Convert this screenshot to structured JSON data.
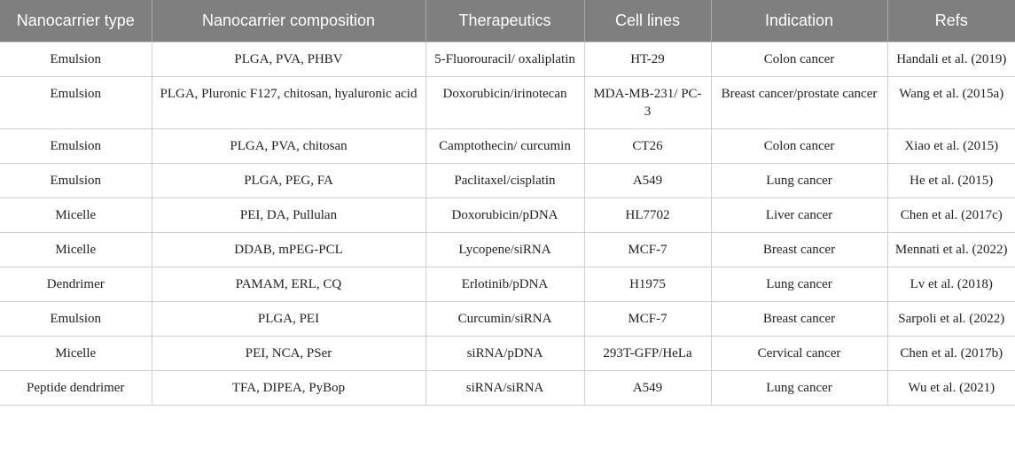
{
  "table": {
    "header": [
      "Nanocarrier type",
      "Nanocarrier composition",
      "Therapeutics",
      "Cell lines",
      "Indication",
      "Refs"
    ],
    "rows": [
      [
        "Emulsion",
        "PLGA, PVA, PHBV",
        "5-Fluorouracil/ oxaliplatin",
        "HT-29",
        "Colon cancer",
        "Handali et al. (2019)"
      ],
      [
        "Emulsion",
        "PLGA, Pluronic F127, chitosan, hyaluronic acid",
        "Doxorubicin/irinotecan",
        "MDA-MB-231/ PC-3",
        "Breast cancer/prostate cancer",
        "Wang et al. (2015a)"
      ],
      [
        "Emulsion",
        "PLGA, PVA, chitosan",
        "Camptothecin/ curcumin",
        "CT26",
        "Colon cancer",
        "Xiao et al. (2015)"
      ],
      [
        "Emulsion",
        "PLGA, PEG, FA",
        "Paclitaxel/cisplatin",
        "A549",
        "Lung cancer",
        "He et al. (2015)"
      ],
      [
        "Micelle",
        "PEI, DA, Pullulan",
        "Doxorubicin/pDNA",
        "HL7702",
        "Liver cancer",
        "Chen et al. (2017c)"
      ],
      [
        "Micelle",
        "DDAB, mPEG-PCL",
        "Lycopene/siRNA",
        "MCF-7",
        "Breast cancer",
        "Mennati et al. (2022)"
      ],
      [
        "Dendrimer",
        "PAMAM, ERL, CQ",
        "Erlotinib/pDNA",
        "H1975",
        "Lung cancer",
        "Lv et al. (2018)"
      ],
      [
        "Emulsion",
        "PLGA, PEI",
        "Curcumin/siRNA",
        "MCF-7",
        "Breast cancer",
        "Sarpoli et al. (2022)"
      ],
      [
        "Micelle",
        "PEI, NCA, PSer",
        "siRNA/pDNA",
        "293T-GFP/HeLa",
        "Cervical cancer",
        "Chen et al. (2017b)"
      ],
      [
        "Peptide dendrimer",
        "TFA, DIPEA, PyBop",
        "siRNA/siRNA",
        "A549",
        "Lung cancer",
        "Wu et al. (2021)"
      ]
    ]
  }
}
